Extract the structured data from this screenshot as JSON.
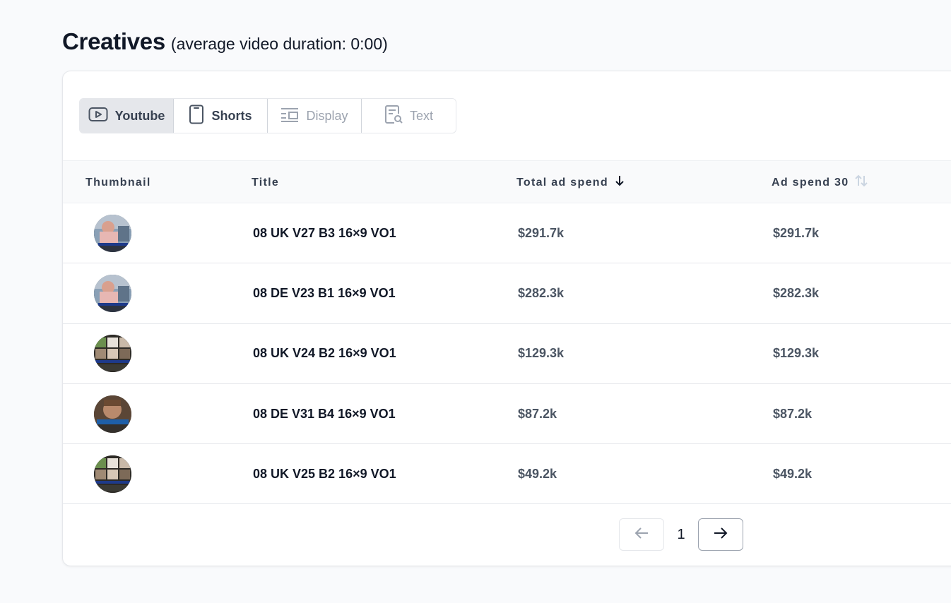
{
  "heading": {
    "title": "Creatives",
    "subtitle": "(average video duration: 0:00)"
  },
  "tabs": [
    {
      "label": "Youtube",
      "icon": "play-icon",
      "state": "active"
    },
    {
      "label": "Shorts",
      "icon": "phone-icon",
      "state": "normal"
    },
    {
      "label": "Display",
      "icon": "display-icon",
      "state": "disabled"
    },
    {
      "label": "Text",
      "icon": "text-search-icon",
      "state": "disabled"
    }
  ],
  "table": {
    "columns": {
      "thumbnail": "Thumbnail",
      "title": "Title",
      "total_ad_spend": "Total ad spend",
      "ad_spend_30": "Ad spend 30"
    },
    "sort": {
      "column": "total_ad_spend",
      "direction": "descending"
    },
    "rows": [
      {
        "title": "08 UK V27 B3 16×9 VO1",
        "total_ad_spend": "$291.7k",
        "ad_spend_30": "$291.7k",
        "thumb": "a"
      },
      {
        "title": "08 DE V23 B1 16×9 VO1",
        "total_ad_spend": "$282.3k",
        "ad_spend_30": "$282.3k",
        "thumb": "a"
      },
      {
        "title": "08 UK V24 B2 16×9 VO1",
        "total_ad_spend": "$129.3k",
        "ad_spend_30": "$129.3k",
        "thumb": "b"
      },
      {
        "title": "08 DE V31 B4 16×9 VO1",
        "total_ad_spend": "$87.2k",
        "ad_spend_30": "$87.2k",
        "thumb": "c"
      },
      {
        "title": "08 UK V25 B2 16×9 VO1",
        "total_ad_spend": "$49.2k",
        "ad_spend_30": "$49.2k",
        "thumb": "b"
      }
    ]
  },
  "pagination": {
    "current_page": "1",
    "prev_icon": "arrow-left-icon",
    "next_icon": "arrow-right-icon"
  }
}
